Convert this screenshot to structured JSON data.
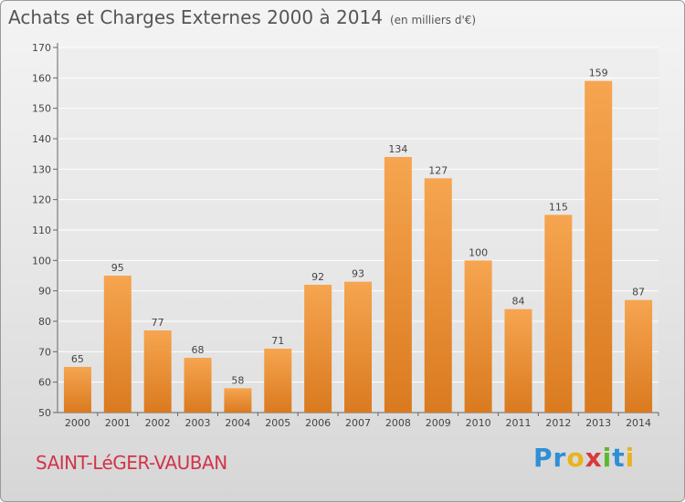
{
  "header": {
    "title": "Achats et Charges Externes 2000 à 2014",
    "subtitle": "(en milliers d'€)"
  },
  "commune": "SAINT-LéGER-VAUBAN",
  "brand": {
    "letters": [
      "P",
      "r",
      "o",
      "x",
      "i",
      "t",
      "i"
    ],
    "colors": [
      "#2f8fd6",
      "#2f8fd6",
      "#e8b31c",
      "#d63a3a",
      "#5cb82e",
      "#2f8fd6",
      "#e8b31c"
    ]
  },
  "colors": {
    "bar_top": "#f6a550",
    "bar_bottom": "#da7a1f",
    "grid": "#ffffff",
    "axis_text": "#444444"
  },
  "chart_data": {
    "type": "bar",
    "title": "Achats et Charges Externes 2000 à 2014",
    "subtitle": "(en milliers d'€)",
    "categories": [
      "2000",
      "2001",
      "2002",
      "2003",
      "2004",
      "2005",
      "2006",
      "2007",
      "2008",
      "2009",
      "2010",
      "2011",
      "2012",
      "2013",
      "2014"
    ],
    "values": [
      65,
      95,
      77,
      68,
      58,
      71,
      92,
      93,
      134,
      127,
      100,
      84,
      115,
      159,
      87
    ],
    "ylim": [
      50,
      170
    ],
    "yticks": [
      50,
      60,
      70,
      80,
      90,
      100,
      110,
      120,
      130,
      140,
      150,
      160,
      170
    ],
    "grid": true,
    "xlabel": "",
    "ylabel": ""
  }
}
